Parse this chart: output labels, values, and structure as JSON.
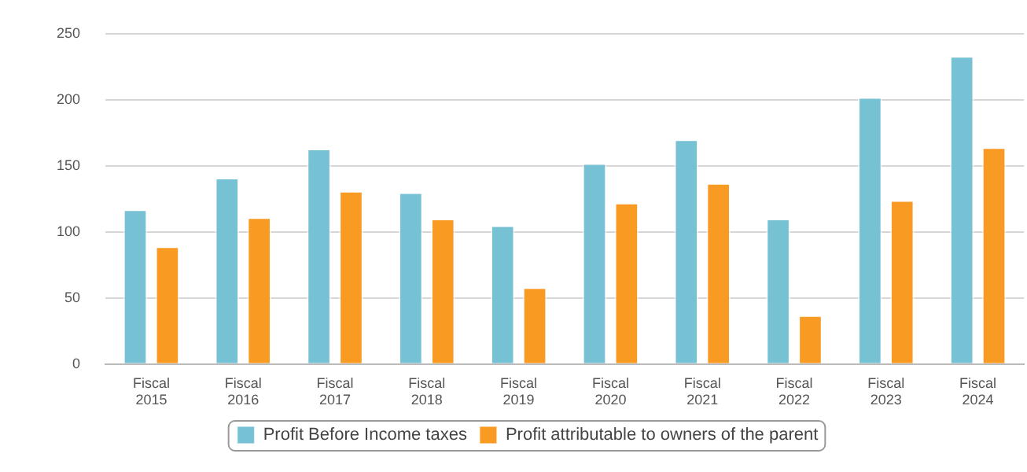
{
  "chart_data": {
    "type": "bar",
    "categories": [
      "Fiscal 2015",
      "Fiscal 2016",
      "Fiscal 2017",
      "Fiscal 2018",
      "Fiscal 2019",
      "Fiscal 2020",
      "Fiscal 2021",
      "Fiscal 2022",
      "Fiscal 2023",
      "Fiscal 2024"
    ],
    "series": [
      {
        "name": "Profit Before Income taxes",
        "color": "#77c1d5",
        "values": [
          117,
          141,
          163,
          130,
          105,
          152,
          170,
          110,
          202,
          233
        ]
      },
      {
        "name": "Profit attributable to owners of the parent",
        "color": "#f99a22",
        "values": [
          89,
          111,
          131,
          110,
          58,
          122,
          137,
          37,
          124,
          164
        ]
      }
    ],
    "ylim": [
      0,
      250
    ],
    "yticks": [
      0,
      50,
      100,
      150,
      200,
      250
    ],
    "grid": "y",
    "legend": "bottom"
  }
}
